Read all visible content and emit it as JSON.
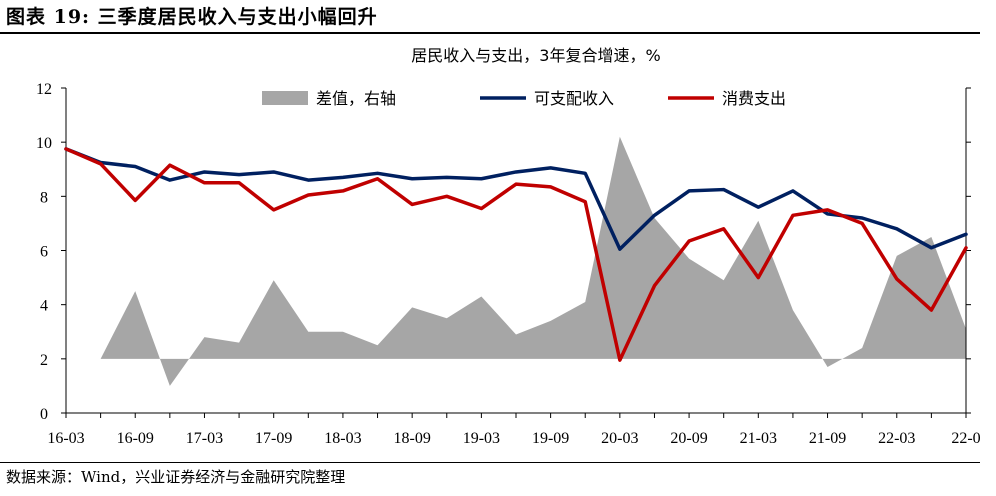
{
  "figure": {
    "title": "图表 19:  三季度居民收入与支出小幅回升",
    "source": "数据来源：Wind，兴业证券经济与金融研究院整理"
  },
  "chart_data": {
    "type": "line",
    "title": "居民收入与支出，3年复合增速，%",
    "xlabel": "",
    "ylabel": "",
    "x": [
      "16-03",
      "16-06",
      "16-09",
      "16-12",
      "17-03",
      "17-06",
      "17-09",
      "17-12",
      "18-03",
      "18-06",
      "18-09",
      "18-12",
      "19-03",
      "19-06",
      "19-09",
      "19-12",
      "20-03",
      "20-06",
      "20-09",
      "20-12",
      "21-03",
      "21-06",
      "21-09",
      "21-12",
      "22-03",
      "22-06",
      "22-09"
    ],
    "x_tick_labels": [
      "16-03",
      "16-09",
      "17-03",
      "17-09",
      "18-03",
      "18-09",
      "19-03",
      "19-09",
      "20-03",
      "20-09",
      "21-03",
      "21-09",
      "22-03",
      "22-0"
    ],
    "ylim": [
      0,
      12
    ],
    "y_ticks": [
      0,
      2,
      4,
      6,
      8,
      10,
      12
    ],
    "grid": false,
    "legend_placement": "top",
    "series": [
      {
        "name": "差值，右轴",
        "kind": "area",
        "color": "#a6a6a6",
        "baseline": 2,
        "values": [
          2.0,
          2.0,
          4.5,
          1.0,
          2.8,
          2.6,
          4.9,
          3.0,
          3.0,
          2.5,
          3.9,
          3.5,
          4.3,
          2.9,
          3.4,
          4.1,
          10.2,
          7.2,
          5.7,
          4.9,
          7.1,
          3.8,
          1.7,
          2.4,
          5.8,
          6.5,
          3.1
        ]
      },
      {
        "name": "可支配收入",
        "kind": "line",
        "color": "#002060",
        "values": [
          9.75,
          9.25,
          9.1,
          8.6,
          8.9,
          8.8,
          8.9,
          8.6,
          8.7,
          8.85,
          8.65,
          8.7,
          8.65,
          8.9,
          9.05,
          8.85,
          6.05,
          7.3,
          8.2,
          8.25,
          7.6,
          8.2,
          7.35,
          7.2,
          6.8,
          6.1,
          6.6
        ]
      },
      {
        "name": "消费支出",
        "kind": "line",
        "color": "#c00000",
        "values": [
          9.75,
          9.2,
          7.85,
          9.15,
          8.5,
          8.5,
          7.5,
          8.05,
          8.2,
          8.65,
          7.7,
          8.0,
          7.55,
          8.45,
          8.35,
          7.8,
          1.95,
          4.7,
          6.35,
          6.8,
          5.0,
          7.3,
          7.5,
          7.0,
          4.95,
          3.8,
          6.1
        ]
      }
    ]
  }
}
